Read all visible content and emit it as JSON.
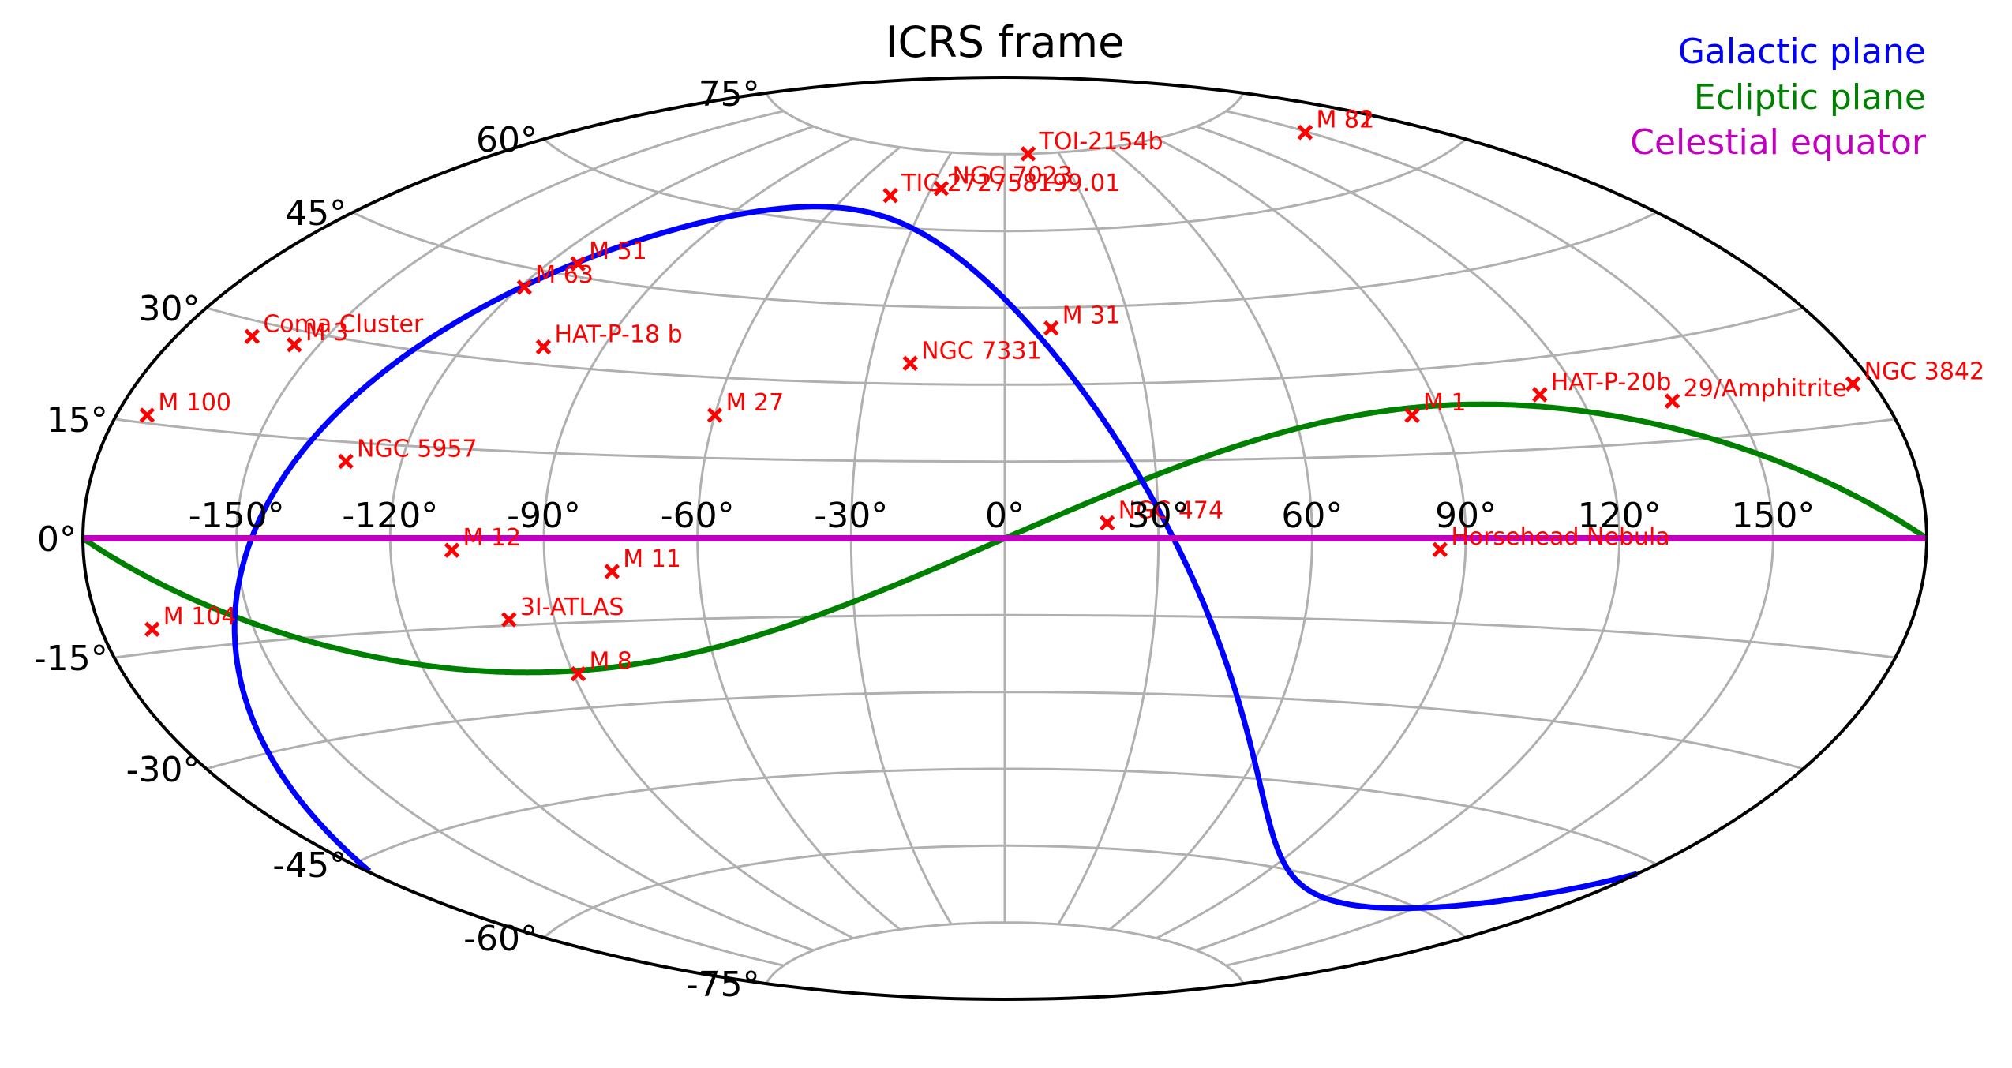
{
  "chart_data": {
    "type": "scatter",
    "projection": "aitoff",
    "title": "ICRS frame",
    "xlabel": "",
    "ylabel": "",
    "grid": true,
    "lon_ticks": [
      {
        "value": -150,
        "label": "-150°"
      },
      {
        "value": -120,
        "label": "-120°"
      },
      {
        "value": -90,
        "label": "-90°"
      },
      {
        "value": -60,
        "label": "-60°"
      },
      {
        "value": -30,
        "label": "-30°"
      },
      {
        "value": 0,
        "label": "0°"
      },
      {
        "value": 30,
        "label": "30°"
      },
      {
        "value": 60,
        "label": "60°"
      },
      {
        "value": 90,
        "label": "90°"
      },
      {
        "value": 120,
        "label": "120°"
      },
      {
        "value": 150,
        "label": "150°"
      }
    ],
    "lat_ticks": [
      {
        "value": 75,
        "label": "75°"
      },
      {
        "value": 60,
        "label": "60°"
      },
      {
        "value": 45,
        "label": "45°"
      },
      {
        "value": 30,
        "label": "30°"
      },
      {
        "value": 15,
        "label": "15°"
      },
      {
        "value": 0,
        "label": "0°"
      },
      {
        "value": -15,
        "label": "-15°"
      },
      {
        "value": -30,
        "label": "-30°"
      },
      {
        "value": -45,
        "label": "-45°"
      },
      {
        "value": -60,
        "label": "-60°"
      },
      {
        "value": -75,
        "label": "-75°"
      }
    ],
    "legend": {
      "position": "upper right",
      "entries": [
        {
          "label": "Galactic plane",
          "color": "#0000ff"
        },
        {
          "label": "Ecliptic plane",
          "color": "#008000"
        },
        {
          "label": "Celestial equator",
          "color": "#bf00bf"
        }
      ]
    },
    "lines": [
      {
        "name": "Galactic plane",
        "color": "#0000ff"
      },
      {
        "name": "Ecliptic plane",
        "color": "#008000"
      },
      {
        "name": "Celestial equator",
        "color": "#bf00bf"
      }
    ],
    "points": [
      {
        "name": "TOI-2154b",
        "lon": 13,
        "lat": 75
      },
      {
        "name": "M 82",
        "lon": 149,
        "lat": 69
      },
      {
        "name": "M 81",
        "lon": 149,
        "lat": 69
      },
      {
        "name": "TIC 272758199.01",
        "lon": -44,
        "lat": 66
      },
      {
        "name": "NGC 7023",
        "lon": -26,
        "lat": 68
      },
      {
        "name": "M 51",
        "lon": -113,
        "lat": 47
      },
      {
        "name": "M 63",
        "lon": -119,
        "lat": 42
      },
      {
        "name": "Coma Cluster",
        "lon": -165,
        "lat": 28
      },
      {
        "name": "M 3",
        "lon": -155,
        "lat": 28
      },
      {
        "name": "HAT-P-18 b",
        "lon": -103,
        "lat": 33
      },
      {
        "name": "M 31",
        "lon": 11,
        "lat": 41
      },
      {
        "name": "NGC 7331",
        "lon": -21,
        "lat": 34
      },
      {
        "name": "M 100",
        "lon": -174,
        "lat": 16
      },
      {
        "name": "M 27",
        "lon": -60,
        "lat": 23
      },
      {
        "name": "NGC 5957",
        "lon": -131,
        "lat": 12
      },
      {
        "name": "M 1",
        "lon": 84,
        "lat": 22
      },
      {
        "name": "HAT-P-20b",
        "lon": 112,
        "lat": 24
      },
      {
        "name": "29/Amphitrite",
        "lon": 138,
        "lat": 21
      },
      {
        "name": "NGC 3842",
        "lon": 176,
        "lat": 20
      },
      {
        "name": "NGC 474",
        "lon": 20,
        "lat": 3
      },
      {
        "name": "M 12",
        "lon": -108,
        "lat": -2
      },
      {
        "name": "M 11",
        "lon": -77,
        "lat": -6
      },
      {
        "name": "Horsehead Nebula",
        "lon": 85,
        "lat": -2
      },
      {
        "name": "M 104",
        "lon": -170,
        "lat": -12
      },
      {
        "name": "3I-ATLAS",
        "lon": -99,
        "lat": -14
      },
      {
        "name": "M 8",
        "lon": -89,
        "lat": -24
      }
    ]
  }
}
